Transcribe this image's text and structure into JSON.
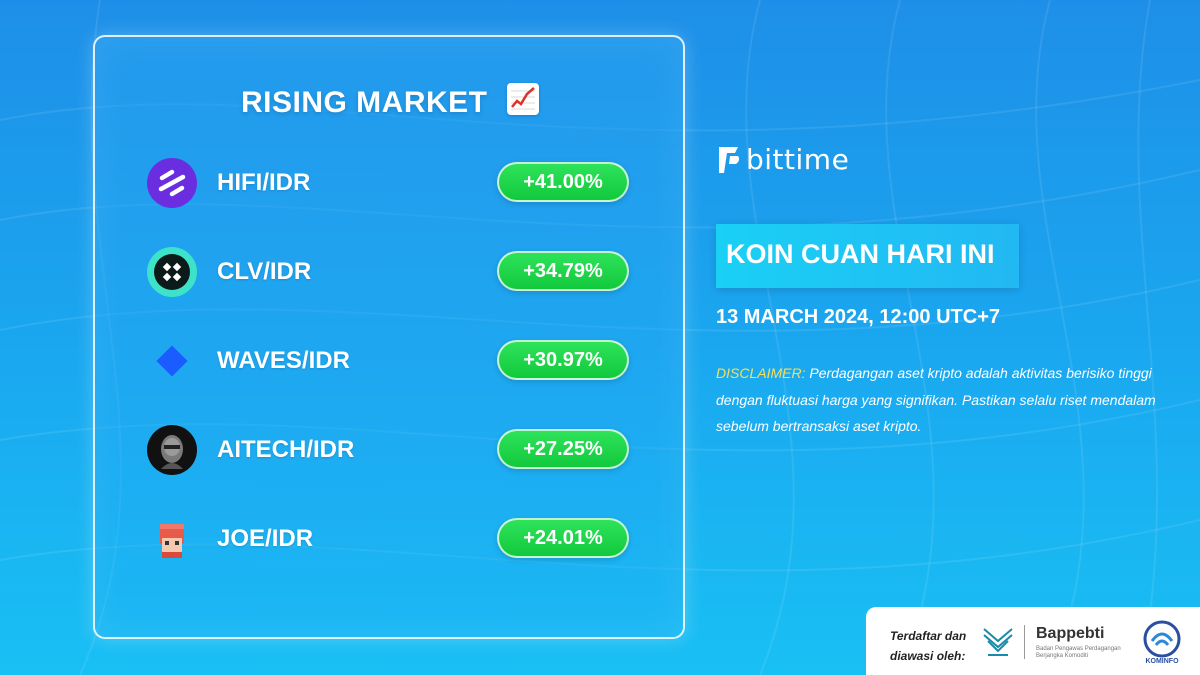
{
  "card": {
    "title": "RISING MARKET",
    "title_icon": "chart-increasing-icon",
    "items": [
      {
        "pair": "HIFI/IDR",
        "change": "+41.00%",
        "icon": "hifi-logo-icon"
      },
      {
        "pair": "CLV/IDR",
        "change": "+34.79%",
        "icon": "clv-logo-icon"
      },
      {
        "pair": "WAVES/IDR",
        "change": "+30.97%",
        "icon": "waves-logo-icon"
      },
      {
        "pair": "AITECH/IDR",
        "change": "+27.25%",
        "icon": "aitech-logo-icon"
      },
      {
        "pair": "JOE/IDR",
        "change": "+24.01%",
        "icon": "joe-logo-icon"
      }
    ]
  },
  "brand": {
    "name": "bittime"
  },
  "headline": "KOIN CUAN HARI INI",
  "date": "13 MARCH 2024, 12:00 UTC+7",
  "disclaimer": {
    "label": "DISCLAIMER:",
    "text": " Perdagangan aset kripto adalah aktivitas berisiko tinggi dengan fluktuasi harga yang signifikan. Pastikan selalu riset mendalam sebelum bertransaksi aset kripto."
  },
  "footer": {
    "registered_text": "Terdaftar dan diawasi oleh:",
    "bappebti": "Bappebti",
    "bappebti_sub": "Badan Pengawas Perdagangan Berjangka Komoditi",
    "kominfo": "KOMINFO"
  },
  "colors": {
    "background": "#1aa9f0",
    "pill_green": "#12c83c",
    "disclaimer_label": "#f5e05a"
  }
}
